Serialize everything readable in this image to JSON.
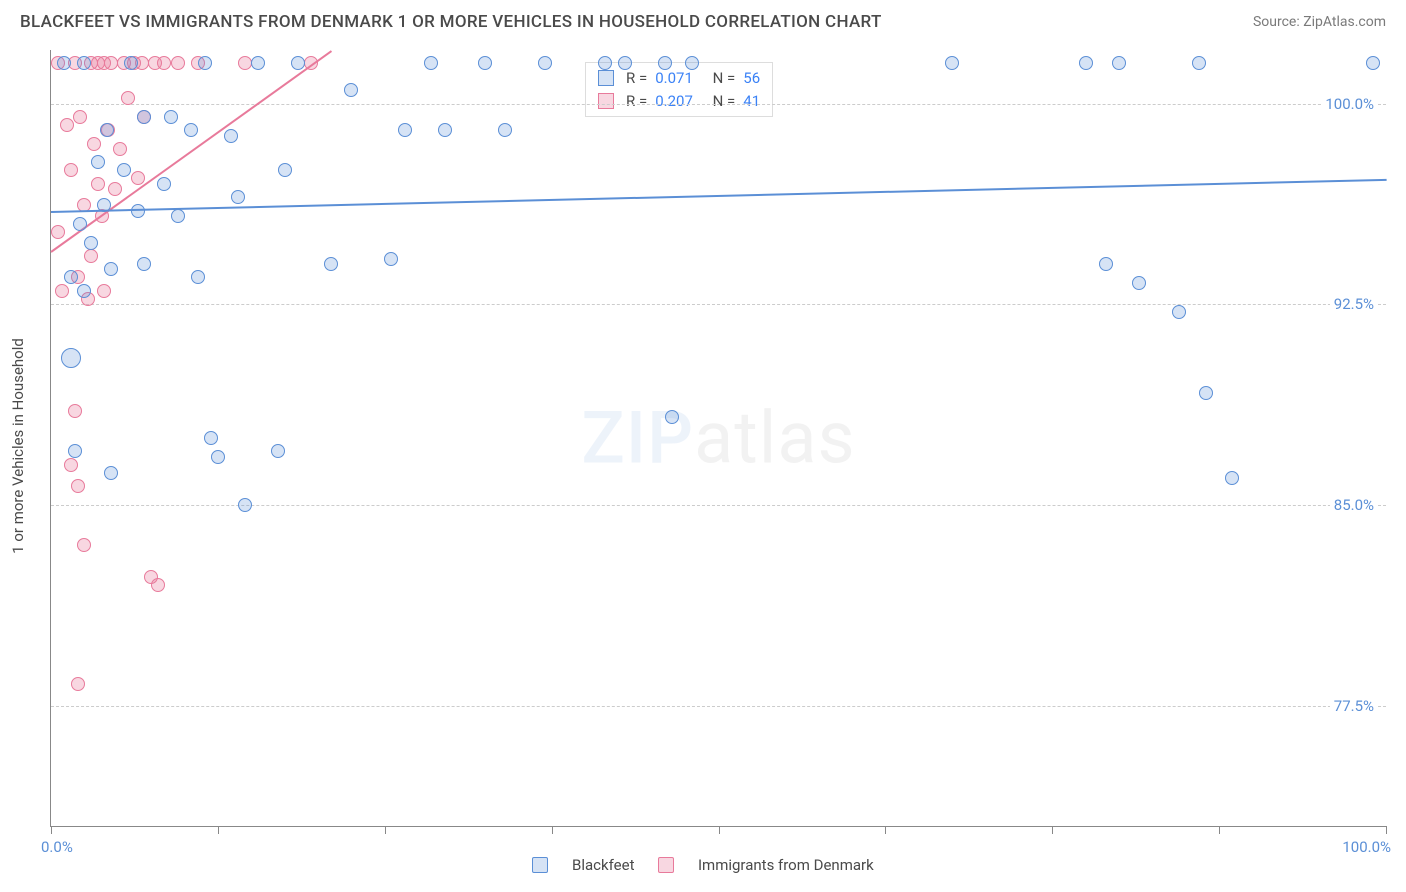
{
  "header": {
    "title": "BLACKFEET VS IMMIGRANTS FROM DENMARK 1 OR MORE VEHICLES IN HOUSEHOLD CORRELATION CHART",
    "source": "Source: ZipAtlas.com"
  },
  "axes": {
    "y_label": "1 or more Vehicles in Household",
    "x_min": 0.0,
    "x_max": 100.0,
    "y_min": 73.0,
    "y_max": 102.0,
    "x_label_min": "0.0%",
    "x_label_max": "100.0%",
    "y_ticks": [
      {
        "v": 100.0,
        "label": "100.0%"
      },
      {
        "v": 92.5,
        "label": "92.5%"
      },
      {
        "v": 85.0,
        "label": "85.0%"
      },
      {
        "v": 77.5,
        "label": "77.5%"
      }
    ],
    "x_tick_positions": [
      0,
      12.5,
      25,
      37.5,
      50,
      62.5,
      75,
      87.5,
      100
    ],
    "grid_color": "#ccc",
    "label_color": "#5b8fd6",
    "label_fontsize": 15
  },
  "series": {
    "blackfeet": {
      "label": "Blackfeet",
      "color": "#5b8fd6",
      "fill": "rgba(91,143,214,0.25)",
      "stroke": "#5b8fd6",
      "marker_size": 14,
      "R": "0.071",
      "N": "56",
      "trend": {
        "x1": 0,
        "y1": 96.0,
        "x2": 100,
        "y2": 97.2
      },
      "points": [
        {
          "x": 1.0,
          "y": 101.5
        },
        {
          "x": 1.5,
          "y": 90.5,
          "size": 20
        },
        {
          "x": 1.5,
          "y": 93.5
        },
        {
          "x": 1.8,
          "y": 87.0
        },
        {
          "x": 2.2,
          "y": 95.5
        },
        {
          "x": 2.5,
          "y": 101.5
        },
        {
          "x": 2.5,
          "y": 93.0
        },
        {
          "x": 3.0,
          "y": 94.8
        },
        {
          "x": 3.5,
          "y": 97.8
        },
        {
          "x": 4.0,
          "y": 96.2
        },
        {
          "x": 4.2,
          "y": 99.0
        },
        {
          "x": 4.5,
          "y": 93.8
        },
        {
          "x": 4.5,
          "y": 86.2
        },
        {
          "x": 5.5,
          "y": 97.5
        },
        {
          "x": 6.0,
          "y": 101.5
        },
        {
          "x": 6.5,
          "y": 96.0
        },
        {
          "x": 7.0,
          "y": 99.5
        },
        {
          "x": 7.0,
          "y": 94.0
        },
        {
          "x": 8.5,
          "y": 97.0
        },
        {
          "x": 9.0,
          "y": 99.5
        },
        {
          "x": 9.5,
          "y": 95.8
        },
        {
          "x": 10.5,
          "y": 99.0
        },
        {
          "x": 11.0,
          "y": 93.5
        },
        {
          "x": 11.5,
          "y": 101.5
        },
        {
          "x": 12.0,
          "y": 87.5
        },
        {
          "x": 12.5,
          "y": 86.8
        },
        {
          "x": 13.5,
          "y": 98.8
        },
        {
          "x": 14.0,
          "y": 96.5
        },
        {
          "x": 14.5,
          "y": 85.0
        },
        {
          "x": 15.5,
          "y": 101.5
        },
        {
          "x": 17.0,
          "y": 87.0
        },
        {
          "x": 17.5,
          "y": 97.5
        },
        {
          "x": 18.5,
          "y": 101.5
        },
        {
          "x": 21.0,
          "y": 94.0
        },
        {
          "x": 22.5,
          "y": 100.5
        },
        {
          "x": 25.5,
          "y": 94.2
        },
        {
          "x": 26.5,
          "y": 99.0
        },
        {
          "x": 28.5,
          "y": 101.5
        },
        {
          "x": 29.5,
          "y": 99.0
        },
        {
          "x": 32.5,
          "y": 101.5
        },
        {
          "x": 34.0,
          "y": 99.0
        },
        {
          "x": 37.0,
          "y": 101.5
        },
        {
          "x": 41.5,
          "y": 101.5
        },
        {
          "x": 43.0,
          "y": 101.5
        },
        {
          "x": 46.0,
          "y": 101.5
        },
        {
          "x": 46.5,
          "y": 88.3
        },
        {
          "x": 48.0,
          "y": 101.5
        },
        {
          "x": 67.5,
          "y": 101.5
        },
        {
          "x": 77.5,
          "y": 101.5
        },
        {
          "x": 79.0,
          "y": 94.0
        },
        {
          "x": 80.0,
          "y": 101.5
        },
        {
          "x": 81.5,
          "y": 93.3
        },
        {
          "x": 84.5,
          "y": 92.2
        },
        {
          "x": 86.0,
          "y": 101.5
        },
        {
          "x": 86.5,
          "y": 89.2
        },
        {
          "x": 88.5,
          "y": 86.0
        },
        {
          "x": 99.0,
          "y": 101.5
        }
      ]
    },
    "denmark": {
      "label": "Immigrants from Denmark",
      "color": "#e87a9b",
      "fill": "rgba(232,122,155,0.30)",
      "stroke": "#e87a9b",
      "marker_size": 14,
      "R": "0.207",
      "N": "41",
      "trend": {
        "x1": 0,
        "y1": 94.5,
        "x2": 21,
        "y2": 102.0
      },
      "points": [
        {
          "x": 0.5,
          "y": 101.5
        },
        {
          "x": 0.5,
          "y": 95.2
        },
        {
          "x": 0.8,
          "y": 93.0
        },
        {
          "x": 1.2,
          "y": 99.2
        },
        {
          "x": 1.5,
          "y": 86.5
        },
        {
          "x": 1.5,
          "y": 97.5
        },
        {
          "x": 1.8,
          "y": 101.5
        },
        {
          "x": 1.8,
          "y": 88.5
        },
        {
          "x": 2.0,
          "y": 85.7
        },
        {
          "x": 2.0,
          "y": 78.3
        },
        {
          "x": 2.2,
          "y": 99.5
        },
        {
          "x": 2.0,
          "y": 93.5
        },
        {
          "x": 2.5,
          "y": 83.5
        },
        {
          "x": 2.5,
          "y": 96.2
        },
        {
          "x": 2.8,
          "y": 92.7
        },
        {
          "x": 3.0,
          "y": 101.5
        },
        {
          "x": 3.0,
          "y": 94.3
        },
        {
          "x": 3.2,
          "y": 98.5
        },
        {
          "x": 3.5,
          "y": 101.5
        },
        {
          "x": 3.5,
          "y": 97.0
        },
        {
          "x": 3.8,
          "y": 95.8
        },
        {
          "x": 4.0,
          "y": 101.5
        },
        {
          "x": 4.0,
          "y": 93.0
        },
        {
          "x": 4.3,
          "y": 99.0
        },
        {
          "x": 4.5,
          "y": 101.5
        },
        {
          "x": 4.8,
          "y": 96.8
        },
        {
          "x": 5.2,
          "y": 98.3
        },
        {
          "x": 5.5,
          "y": 101.5
        },
        {
          "x": 5.8,
          "y": 100.2
        },
        {
          "x": 6.2,
          "y": 101.5
        },
        {
          "x": 6.5,
          "y": 97.2
        },
        {
          "x": 6.8,
          "y": 101.5
        },
        {
          "x": 7.0,
          "y": 99.5
        },
        {
          "x": 7.5,
          "y": 82.3
        },
        {
          "x": 7.8,
          "y": 101.5
        },
        {
          "x": 8.0,
          "y": 82.0
        },
        {
          "x": 8.5,
          "y": 101.5
        },
        {
          "x": 9.5,
          "y": 101.5
        },
        {
          "x": 11.0,
          "y": 101.5
        },
        {
          "x": 14.5,
          "y": 101.5
        },
        {
          "x": 19.5,
          "y": 101.5
        }
      ]
    }
  },
  "legend_stats": {
    "r_label": "R =",
    "n_label": "N ="
  },
  "watermark": {
    "zip": "ZIP",
    "atlas": "atlas"
  }
}
